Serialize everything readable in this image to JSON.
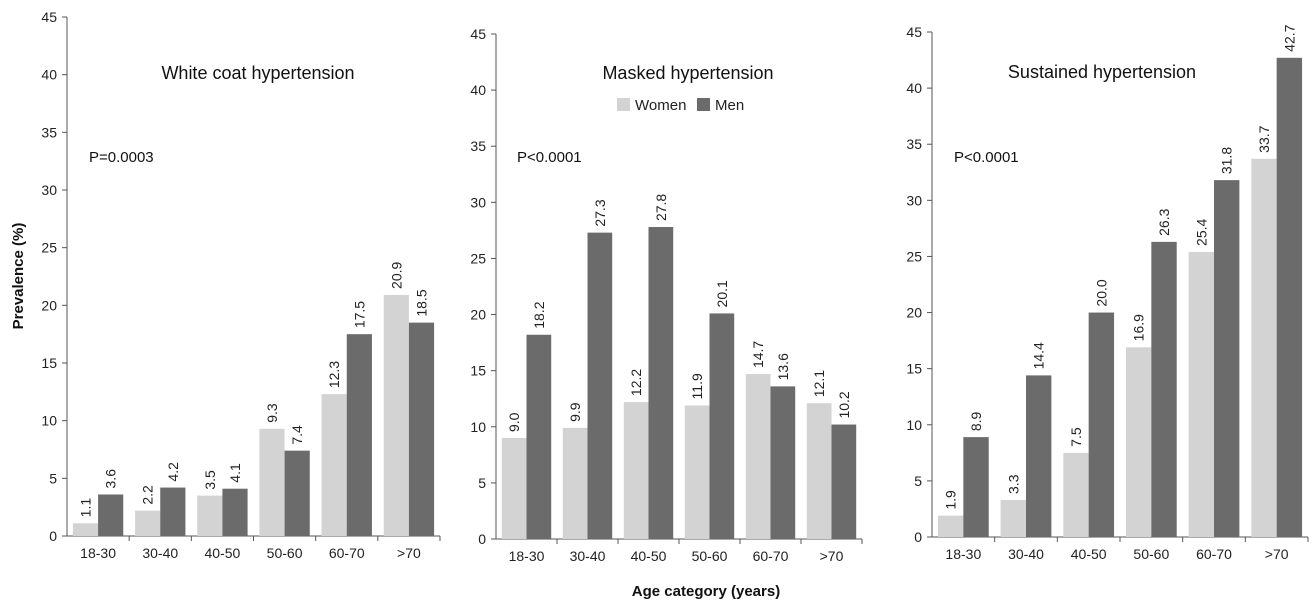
{
  "figure": {
    "ylabel": "Prevalence (%)",
    "xlabel": "Age category (years)",
    "legend": [
      {
        "name": "Women",
        "color": "#d3d3d3"
      },
      {
        "name": "Men",
        "color": "#6b6b6b"
      }
    ]
  },
  "chart_data": [
    {
      "type": "bar",
      "title": "White coat hypertension",
      "annotation": "P=0.0003",
      "categories": [
        "18-30",
        "30-40",
        "40-50",
        "50-60",
        "60-70",
        ">70"
      ],
      "series": [
        {
          "name": "Women",
          "values": [
            1.1,
            2.2,
            3.5,
            9.3,
            12.3,
            20.9
          ]
        },
        {
          "name": "Men",
          "values": [
            3.6,
            4.2,
            4.1,
            7.4,
            17.5,
            18.5
          ]
        }
      ],
      "ylim": [
        0,
        45
      ],
      "yticks": [
        0,
        5,
        10,
        15,
        20,
        25,
        30,
        35,
        40,
        45
      ],
      "grid": false
    },
    {
      "type": "bar",
      "title": "Masked hypertension",
      "annotation": "P<0.0001",
      "categories": [
        "18-30",
        "30-40",
        "40-50",
        "50-60",
        "60-70",
        ">70"
      ],
      "series": [
        {
          "name": "Women",
          "values": [
            9.0,
            9.9,
            12.2,
            11.9,
            14.7,
            12.1
          ]
        },
        {
          "name": "Men",
          "values": [
            18.2,
            27.3,
            27.8,
            20.1,
            13.6,
            10.2
          ]
        }
      ],
      "ylim": [
        0,
        45
      ],
      "yticks": [
        0,
        5,
        10,
        15,
        20,
        25,
        30,
        35,
        40,
        45
      ],
      "legend": "top-center",
      "grid": false
    },
    {
      "type": "bar",
      "title": "Sustained hypertension",
      "annotation": "P<0.0001",
      "categories": [
        "18-30",
        "30-40",
        "40-50",
        "50-60",
        "60-70",
        ">70"
      ],
      "series": [
        {
          "name": "Women",
          "values": [
            1.9,
            3.3,
            7.5,
            16.9,
            25.4,
            33.7
          ]
        },
        {
          "name": "Men",
          "values": [
            8.9,
            14.4,
            20.0,
            26.3,
            31.8,
            42.7
          ]
        }
      ],
      "ylim": [
        0,
        45
      ],
      "yticks": [
        0,
        5,
        10,
        15,
        20,
        25,
        30,
        35,
        40,
        45
      ],
      "grid": false
    }
  ]
}
